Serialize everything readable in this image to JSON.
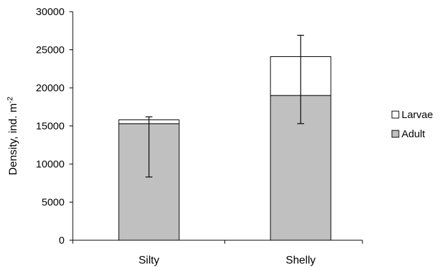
{
  "chart_data": {
    "type": "bar",
    "stacked": true,
    "title": "",
    "xlabel": "",
    "ylabel": "Density, ind. m",
    "ylabel_superscript": "-2",
    "ylim": [
      0,
      30000
    ],
    "yticks": [
      0,
      5000,
      10000,
      15000,
      20000,
      25000,
      30000
    ],
    "ytick_labels": [
      "0",
      "5000",
      "10000",
      "15000",
      "20000",
      "25000",
      "30000"
    ],
    "grid": false,
    "legend_position": "right",
    "categories": [
      "Silty",
      "Shelly"
    ],
    "series": [
      {
        "name": "Adult",
        "values": [
          15300,
          19000
        ],
        "color": "#c0c0c0"
      },
      {
        "name": "Larvae",
        "values": [
          500,
          5100
        ],
        "color": "#ffffff"
      }
    ],
    "error_bars": [
      {
        "category": "Silty",
        "lower": 8300,
        "upper": 16200
      },
      {
        "category": "Shelly",
        "lower": 15300,
        "upper": 26900
      }
    ],
    "legend": [
      {
        "label": "Larvae",
        "color": "#ffffff"
      },
      {
        "label": "Adult",
        "color": "#c0c0c0"
      }
    ]
  }
}
